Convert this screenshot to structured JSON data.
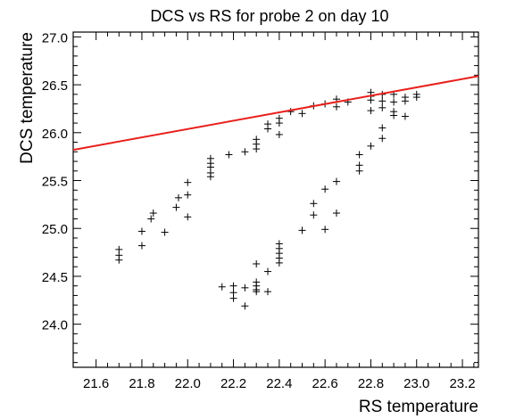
{
  "chart_data": {
    "type": "scatter",
    "title": "DCS vs RS for probe 2 on day 10",
    "xlabel": "RS temperature",
    "ylabel": "DCS temperature",
    "xlim": [
      21.5,
      23.27
    ],
    "ylim": [
      23.55,
      27.05
    ],
    "x_ticks": [
      "21.6",
      "21.8",
      "22.0",
      "22.2",
      "22.4",
      "22.6",
      "22.8",
      "23.0",
      "23.2"
    ],
    "y_ticks": [
      "24.0",
      "24.5",
      "25.0",
      "25.5",
      "26.0",
      "26.5",
      "27.0"
    ],
    "grid": false,
    "marker": "+",
    "series": [
      {
        "color": "#000000",
        "points": [
          [
            21.7,
            24.78
          ],
          [
            21.7,
            24.72
          ],
          [
            21.7,
            24.67
          ],
          [
            21.8,
            24.97
          ],
          [
            21.8,
            24.82
          ],
          [
            21.84,
            25.1
          ],
          [
            21.85,
            25.16
          ],
          [
            21.9,
            24.96
          ],
          [
            21.95,
            25.22
          ],
          [
            21.96,
            25.32
          ],
          [
            22.0,
            25.35
          ],
          [
            22.0,
            25.48
          ],
          [
            22.0,
            25.12
          ],
          [
            22.1,
            25.73
          ],
          [
            22.1,
            25.68
          ],
          [
            22.1,
            25.64
          ],
          [
            22.1,
            25.58
          ],
          [
            22.1,
            25.54
          ],
          [
            22.18,
            25.77
          ],
          [
            22.25,
            25.8
          ],
          [
            22.3,
            25.83
          ],
          [
            22.3,
            25.88
          ],
          [
            22.3,
            25.93
          ],
          [
            22.35,
            26.04
          ],
          [
            22.35,
            26.09
          ],
          [
            22.4,
            26.1
          ],
          [
            22.4,
            26.15
          ],
          [
            22.4,
            25.98
          ],
          [
            22.45,
            26.22
          ],
          [
            22.5,
            26.2
          ],
          [
            22.55,
            26.28
          ],
          [
            22.6,
            26.3
          ],
          [
            22.65,
            26.35
          ],
          [
            22.65,
            26.27
          ],
          [
            22.7,
            26.32
          ],
          [
            22.8,
            26.42
          ],
          [
            22.8,
            26.38
          ],
          [
            22.8,
            26.34
          ],
          [
            22.8,
            26.23
          ],
          [
            22.85,
            26.4
          ],
          [
            22.85,
            26.33
          ],
          [
            22.85,
            26.26
          ],
          [
            22.9,
            26.4
          ],
          [
            22.9,
            26.32
          ],
          [
            22.9,
            26.22
          ],
          [
            22.9,
            26.18
          ],
          [
            22.95,
            26.37
          ],
          [
            22.95,
            26.33
          ],
          [
            22.95,
            26.17
          ],
          [
            23.0,
            26.4
          ],
          [
            23.0,
            26.37
          ],
          [
            22.15,
            24.39
          ],
          [
            22.2,
            24.4
          ],
          [
            22.2,
            24.33
          ],
          [
            22.2,
            24.27
          ],
          [
            22.25,
            24.38
          ],
          [
            22.25,
            24.19
          ],
          [
            22.3,
            24.63
          ],
          [
            22.3,
            24.44
          ],
          [
            22.3,
            24.4
          ],
          [
            22.3,
            24.36
          ],
          [
            22.3,
            24.34
          ],
          [
            22.35,
            24.55
          ],
          [
            22.35,
            24.34
          ],
          [
            22.4,
            24.84
          ],
          [
            22.4,
            24.79
          ],
          [
            22.4,
            24.74
          ],
          [
            22.4,
            24.69
          ],
          [
            22.4,
            24.64
          ],
          [
            22.5,
            24.98
          ],
          [
            22.55,
            25.14
          ],
          [
            22.55,
            25.26
          ],
          [
            22.6,
            25.41
          ],
          [
            22.6,
            24.99
          ],
          [
            22.65,
            25.49
          ],
          [
            22.65,
            25.16
          ],
          [
            22.75,
            25.6
          ],
          [
            22.75,
            25.66
          ],
          [
            22.75,
            25.77
          ],
          [
            22.8,
            25.86
          ],
          [
            22.85,
            25.94
          ],
          [
            22.85,
            26.05
          ]
        ]
      },
      {
        "type": "line",
        "color": "#e8201c",
        "points": [
          [
            21.5,
            25.82
          ],
          [
            23.27,
            26.59
          ]
        ]
      }
    ]
  }
}
